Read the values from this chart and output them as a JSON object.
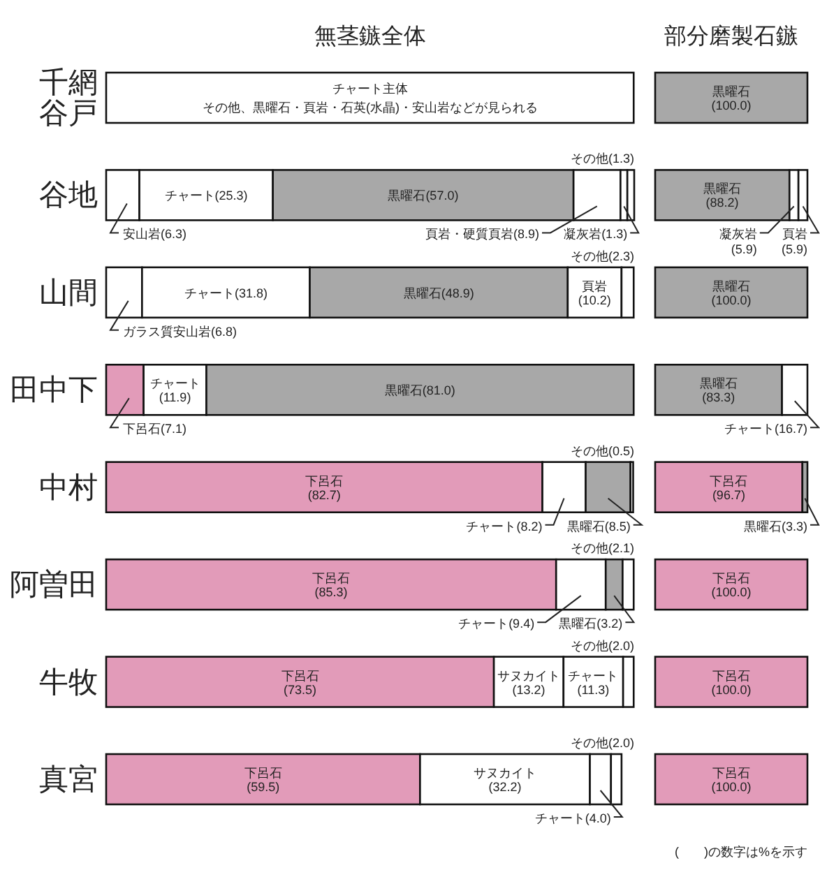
{
  "chart_data": [
    {
      "type": "bar",
      "title": "無茎鏃全体",
      "orientation": "horizontal",
      "stacked": true,
      "categories": [
        "千網谷戸",
        "谷地",
        "山間",
        "田中下",
        "中村",
        "阿曽田",
        "牛牧",
        "真宮"
      ],
      "series": [
        {
          "values": [
            100,
            6.3,
            6.8,
            7.1,
            82.7,
            85.3,
            73.5,
            59.5
          ],
          "colors": [
            "#ffffff",
            "#ffffff",
            "#ffffff",
            "#e29bb9",
            "#e29bb9",
            "#e29bb9",
            "#e29bb9",
            "#e29bb9"
          ],
          "value_labels": [
            "チャート主体",
            "安山岩(6.3)",
            "ガラス質安山岩(6.8)",
            "下呂石(7.1)",
            "下呂石\n(82.7)",
            "下呂石\n(85.3)",
            "下呂石\n(73.5)",
            "下呂石\n(59.5)"
          ]
        },
        {
          "values": [
            null,
            25.3,
            31.8,
            11.9,
            8.2,
            9.4,
            13.2,
            32.2
          ],
          "colors": [
            null,
            "#ffffff",
            "#ffffff",
            "#ffffff",
            "#ffffff",
            "#ffffff",
            "#ffffff",
            "#ffffff"
          ],
          "value_labels": [
            null,
            "チャート(25.3)",
            "チャート(31.8)",
            "チャート\n(11.9)",
            "チャート(8.2)",
            "チャート(9.4)",
            "サヌカイト\n(13.2)",
            "サヌカイト\n(32.2)"
          ]
        },
        {
          "values": [
            null,
            57.0,
            48.9,
            81.0,
            8.5,
            3.2,
            11.3,
            4.0
          ],
          "colors": [
            null,
            "#a8a8a8",
            "#a8a8a8",
            "#a8a8a8",
            "#a8a8a8",
            "#a8a8a8",
            "#ffffff",
            "#ffffff"
          ],
          "value_labels": [
            null,
            "黒曜石(57.0)",
            "黒曜石(48.9)",
            "黒曜石(81.0)",
            "黒曜石(8.5)",
            "黒曜石(3.2)",
            "チャート\n(11.3)",
            "チャート(4.0)"
          ]
        },
        {
          "values": [
            null,
            8.9,
            10.2,
            null,
            0.5,
            2.1,
            2.0,
            2.0
          ],
          "colors": [
            null,
            "#ffffff",
            "#ffffff",
            null,
            "#ffffff",
            "#ffffff",
            "#ffffff",
            "#ffffff"
          ],
          "value_labels": [
            null,
            "頁岩・硬質頁岩(8.9)",
            "頁岩\n(10.2)",
            null,
            "その他(0.5)",
            "その他(2.1)",
            "その他(2.0)",
            "その他(2.0)"
          ]
        },
        {
          "values": [
            null,
            1.3,
            2.3,
            null,
            null,
            null,
            null,
            null
          ],
          "colors": [
            null,
            "#ffffff",
            "#ffffff",
            null,
            null,
            null,
            null,
            null
          ],
          "value_labels": [
            null,
            "凝灰岩(1.3)",
            "その他(2.3)",
            null,
            null,
            null,
            null,
            null
          ]
        },
        {
          "values": [
            null,
            1.3,
            null,
            null,
            null,
            null,
            null,
            null
          ],
          "colors": [
            null,
            "#ffffff",
            null,
            null,
            null,
            null,
            null,
            null
          ],
          "value_labels": [
            null,
            "その他(1.3)",
            null,
            null,
            null,
            null,
            null,
            null
          ]
        }
      ],
      "annotations": [
        "その他、黒曜石・頁岩・石英(水晶)・安山岩などが見られる"
      ]
    },
    {
      "type": "bar",
      "title": "部分磨製石鏃",
      "orientation": "horizontal",
      "stacked": true,
      "tick_labels": false,
      "categories": [
        "千網谷戸",
        "谷地",
        "山間",
        "田中下",
        "中村",
        "阿曽田",
        "牛牧",
        "真宮"
      ],
      "series": [
        {
          "values": [
            100,
            88.2,
            100,
            83.3,
            96.7,
            100,
            100,
            100
          ],
          "colors": [
            "#a8a8a8",
            "#a8a8a8",
            "#a8a8a8",
            "#a8a8a8",
            "#e29bb9",
            "#e29bb9",
            "#e29bb9",
            "#e29bb9"
          ],
          "value_labels": [
            "黒曜石\n(100.0)",
            "黒曜石\n(88.2)",
            "黒曜石\n(100.0)",
            "黒曜石\n(83.3)",
            "下呂石\n(96.7)",
            "下呂石\n(100.0)",
            "下呂石\n(100.0)",
            "下呂石\n(100.0)"
          ]
        },
        {
          "values": [
            null,
            5.9,
            null,
            16.7,
            3.3,
            null,
            null,
            null
          ],
          "colors": [
            null,
            "#ffffff",
            null,
            "#ffffff",
            "#a8a8a8",
            null,
            null,
            null
          ],
          "value_labels": [
            null,
            "凝灰岩\n(5.9)",
            null,
            "チャート(16.7)",
            "黒曜石(3.3)",
            null,
            null,
            null
          ]
        },
        {
          "values": [
            null,
            5.9,
            null,
            null,
            null,
            null,
            null,
            null
          ],
          "colors": [
            null,
            "#ffffff",
            null,
            null,
            null,
            null,
            null,
            null
          ],
          "value_labels": [
            null,
            "頁岩\n(5.9)",
            null,
            null,
            null,
            null,
            null,
            null
          ]
        }
      ],
      "annotations": [
        "(　　)の数字は%を示す"
      ]
    }
  ]
}
